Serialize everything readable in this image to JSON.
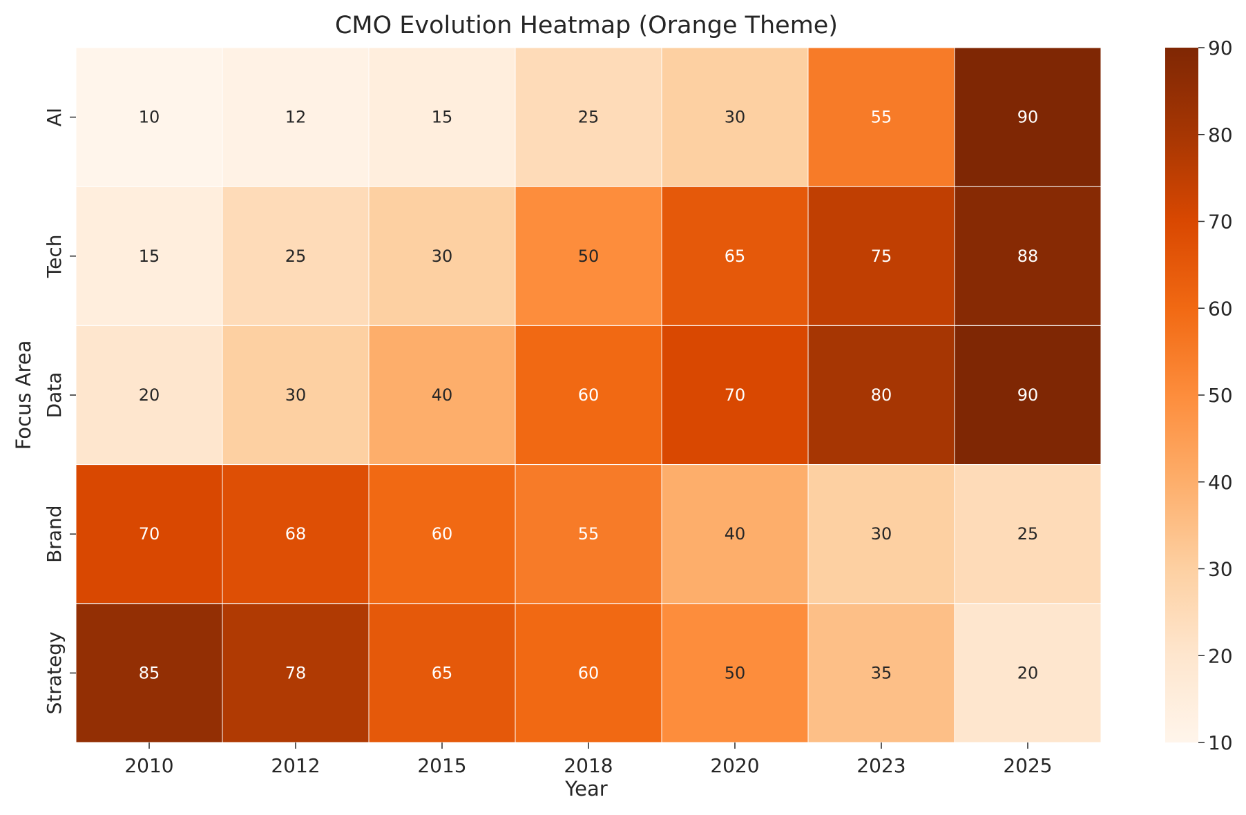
{
  "chart_data": {
    "type": "heatmap",
    "title": "CMO Evolution Heatmap (Orange Theme)",
    "xlabel": "Year",
    "ylabel": "Focus Area",
    "x": [
      "2010",
      "2012",
      "2015",
      "2018",
      "2020",
      "2023",
      "2025"
    ],
    "y": [
      "AI",
      "Tech",
      "Data",
      "Brand",
      "Strategy"
    ],
    "values": [
      [
        10,
        12,
        15,
        25,
        30,
        55,
        90
      ],
      [
        15,
        25,
        30,
        50,
        65,
        75,
        88
      ],
      [
        20,
        30,
        40,
        60,
        70,
        80,
        90
      ],
      [
        70,
        68,
        60,
        55,
        40,
        30,
        25
      ],
      [
        85,
        78,
        65,
        60,
        50,
        35,
        20
      ]
    ],
    "colorscale": "Oranges",
    "vmin": 10,
    "vmax": 90,
    "colorbar_ticks": [
      10,
      20,
      30,
      40,
      50,
      60,
      70,
      80,
      90
    ],
    "annotations": true,
    "colors": {
      "scale": [
        "#fff5eb",
        "#fee6ce",
        "#fdd0a2",
        "#fdae6b",
        "#fd8d3c",
        "#f16913",
        "#d94801",
        "#a63603",
        "#7f2704"
      ],
      "text_light": "#ffffff",
      "text_dark": "#262626",
      "grid_line": "#ffffff"
    }
  }
}
